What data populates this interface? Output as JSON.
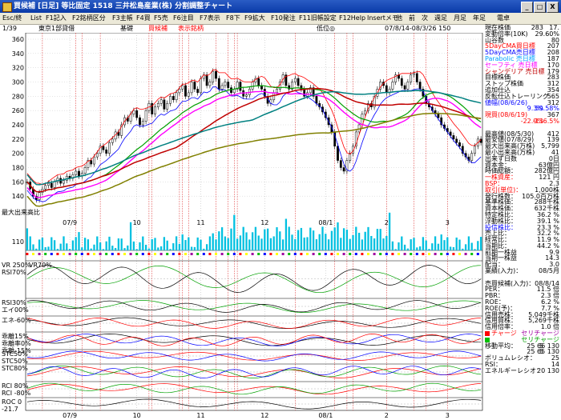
{
  "window": {
    "title": "買候補 [日足] 等比固定  1518  三井松島産業(株)  分割調整チャート",
    "btn_min": "_",
    "btn_max": "□",
    "btn_close": "X"
  },
  "menu": [
    "Esc/終",
    "List",
    "F1記入",
    "F2銘柄区分",
    "F3主帳",
    "F4買",
    "F5売",
    "F6注目",
    "F7表示",
    "F8下",
    "F9拡大",
    "F10発注",
    "F11旧帳設定",
    "F12Help",
    "Insertメモ",
    "他",
    "前",
    "次",
    "週足",
    "月足",
    "年足",
    "電卓"
  ],
  "info": {
    "page": "1/39",
    "market": "東京1部貸借",
    "tag1": "基礎",
    "tag2": "買候補",
    "tag3": "表示銘柄",
    "note": "低位◎",
    "range": "07/8/14-08/3/26 150"
  },
  "axes": {
    "price_ticks": [
      "360",
      "340",
      "320",
      "300",
      "280",
      "260",
      "240",
      "220",
      "200",
      "180",
      "160",
      "140"
    ],
    "volume_ticks": [
      "最大出来高比",
      "110"
    ],
    "indicator_labels": [
      "VR 250%",
      "RSI70%",
      "RSI30%",
      "エイ00%",
      "エネ-60%",
      "乖離15%",
      "乖離率0%",
      "乖離-15%",
      "STC50%",
      "STC50%",
      "STC80%",
      "RCI 80%",
      "RCI -80%",
      "ROC 0",
      "-21.7"
    ],
    "vr_labels": [
      "VR70%"
    ],
    "x_ticks": [
      "07/9",
      "10",
      "11",
      "12",
      "08/1",
      "2",
      "3"
    ]
  },
  "chart_data": {
    "type": "candlestick",
    "ylim": [
      120,
      360
    ],
    "x": [
      1,
      2,
      3,
      4,
      5,
      6,
      7,
      8,
      9,
      10,
      11,
      12,
      13,
      14,
      15,
      16,
      17,
      18,
      19,
      20,
      21,
      22,
      23,
      24,
      25,
      26,
      27,
      28,
      29,
      30,
      31,
      32,
      33,
      34,
      35,
      36,
      37,
      38,
      39,
      40,
      41,
      42,
      43,
      44,
      45,
      46,
      47,
      48,
      49,
      50,
      51,
      52,
      53,
      54,
      55,
      56,
      57,
      58,
      59,
      60,
      61,
      62,
      63,
      64,
      65,
      66,
      67,
      68,
      69,
      70,
      71,
      72,
      73,
      74,
      75,
      76,
      77,
      78,
      79,
      80,
      81,
      82,
      83,
      84,
      85,
      86,
      87,
      88,
      89,
      90,
      91,
      92,
      93,
      94,
      95,
      96,
      97,
      98,
      99,
      100,
      101,
      102,
      103,
      104,
      105,
      106,
      107,
      108,
      109,
      110,
      111,
      112,
      113,
      114,
      115,
      116,
      117,
      118,
      119,
      120,
      121,
      122,
      123,
      124,
      125,
      126,
      127,
      128,
      129,
      130,
      131,
      132,
      133,
      134,
      135,
      136,
      137,
      138,
      139,
      140,
      141,
      142,
      143,
      144,
      145,
      146,
      147,
      148,
      149,
      150
    ],
    "close": [
      160,
      150,
      140,
      135,
      145,
      150,
      155,
      158,
      152,
      160,
      165,
      158,
      162,
      168,
      165,
      170,
      175,
      168,
      172,
      180,
      190,
      185,
      195,
      200,
      210,
      205,
      200,
      215,
      220,
      230,
      225,
      240,
      250,
      245,
      255,
      260,
      250,
      240,
      245,
      260,
      270,
      255,
      265,
      270,
      275,
      262,
      270,
      280,
      275,
      285,
      290,
      295,
      280,
      285,
      300,
      290,
      285,
      305,
      310,
      295,
      300,
      315,
      305,
      290,
      295,
      300,
      292,
      285,
      290,
      300,
      288,
      280,
      282,
      290,
      300,
      305,
      295,
      290,
      280,
      270,
      275,
      285,
      290,
      300,
      310,
      295,
      290,
      300,
      305,
      295,
      290,
      280,
      285,
      292,
      280,
      270,
      265,
      258,
      250,
      240,
      230,
      210,
      190,
      180,
      175,
      190,
      200,
      210,
      230,
      240,
      255,
      260,
      270,
      265,
      280,
      290,
      300,
      295,
      285,
      290,
      300,
      310,
      305,
      295,
      290,
      300,
      310,
      312,
      300,
      290,
      280,
      270,
      265,
      260,
      255,
      250,
      240,
      235,
      230,
      225,
      220,
      215,
      210,
      200,
      195,
      190,
      200,
      210,
      220,
      215
    ],
    "series": [
      {
        "name": "5DayCMA買日標",
        "color": "#ff0000"
      },
      {
        "name": "5DayCMA売日標",
        "color": "#0000ff"
      },
      {
        "name": "Parabolic 売日標",
        "color": "#00a0ff"
      },
      {
        "name": "セーフティ 売日標",
        "color": "#ff00ff"
      },
      {
        "name": "シャンデリア 売日標",
        "color": "#c00000"
      }
    ]
  },
  "side": {
    "rows": [
      {
        "k": "現在株価",
        "v2": "283",
        "v": "17."
      },
      {
        "k": "変動倍率(10K)",
        "v": "29.60%"
      },
      {
        "k": "山谷数",
        "v": "80"
      },
      {
        "k": "5DayCMA買日標",
        "v": "207",
        "kc": "#ff0000"
      },
      {
        "k": "5DayCMA売日標",
        "v": "208",
        "kc": "#0000ff"
      },
      {
        "k": "Parabolic 売日標",
        "v": "187",
        "kc": "#00a0ff"
      },
      {
        "k": "セーフティ 売日標",
        "v": "170",
        "kc": "#ff00ff"
      },
      {
        "k": "シャンデリア 売日標",
        "v": "179",
        "kc": "#c00000"
      },
      {
        "k": "目標株価",
        "v": "283"
      },
      {
        "k": "ストップ株価",
        "v": "312"
      },
      {
        "k": "追加仕込",
        "v": "354"
      },
      {
        "k": "反転仕込トレーリング",
        "v": "565"
      },
      {
        "k": "値幅(08/6/26)",
        "v": "312",
        "kc": "#0000ff"
      },
      {
        "k": "",
        "v2": "9.3%",
        "v": "59.58%",
        "vc": "#0000ff"
      },
      {
        "k": "現買(08/6/19)",
        "v": "367",
        "kc": "#ff0000"
      },
      {
        "k": "",
        "v2": "-22.9%",
        "v": "-136.5%",
        "vc": "#ff0000"
      },
      {
        "k": "",
        "v": ""
      },
      {
        "k": "最高値(08/5/30)",
        "v": "412"
      },
      {
        "k": "最安値(07/8/29)",
        "v": "139"
      },
      {
        "k": "最大出来高(万株)",
        "v": "5,799"
      },
      {
        "k": "最小出来高(万株)",
        "v": "41"
      },
      {
        "k": "出来ず日数",
        "v": "0日"
      },
      {
        "k": "資本金：",
        "v": "63億円"
      },
      {
        "k": "時価総額：",
        "v": "282億円"
      },
      {
        "k": "一株資産：",
        "v": "121 円",
        "kc": "#ff0000"
      },
      {
        "k": "BSP：",
        "v": "2.3",
        "kc": "#ff0000"
      },
      {
        "k": "取引(単位)：",
        "v": "1,000株",
        "kc": "#ff0000"
      },
      {
        "k": "発行株数：",
        "v": "105.0百万株"
      },
      {
        "k": "基準株価：",
        "v": "288千株"
      },
      {
        "k": "資本株価：",
        "v": "632千株"
      },
      {
        "k": "特定株比：",
        "v": "36.2 %"
      },
      {
        "k": "浮動株比：",
        "v": "39.1 %"
      },
      {
        "k": "投信株比：",
        "v": "23.3 %",
        "kc": "#0000ff"
      },
      {
        "k": "売上比：",
        "v": "32.2 %"
      },
      {
        "k": "経常比：",
        "v": "11.9 %"
      },
      {
        "k": "当期比：",
        "v": "44.2 %"
      },
      {
        "k": "前期一株益",
        "v": "9.9"
      },
      {
        "k": "当期一株益",
        "v": "14.3"
      },
      {
        "k": "配当：",
        "v": "3.0"
      },
      {
        "k": "業績(入力)：",
        "v": "08/5月"
      },
      {
        "k": "",
        "v": ""
      },
      {
        "k": "売買候補(入力)：",
        "v": "08/8/14"
      },
      {
        "k": "PER：",
        "v": "11.5 倍"
      },
      {
        "k": "PBR：",
        "v": "2.3 倍"
      },
      {
        "k": "ROE：",
        "v": "6.2 %"
      },
      {
        "k": "ROE(予)：",
        "v": "7.7 %"
      },
      {
        "k": "信用売株：",
        "v": "5,049千株"
      },
      {
        "k": "信用買株：",
        "v": "5,269千株"
      },
      {
        "k": "信用倍率：",
        "v": "1.0 倍"
      },
      {
        "k": "チャージ",
        "v": "セリチャージ",
        "sw": "#ff0000",
        "kc": "#ff0000",
        "vc": "#a000a0"
      },
      {
        "k": "",
        "v": "セリチャージ",
        "sw": "#00c000",
        "vc": "#00a000"
      },
      {
        "k": "移動平均：",
        "v2": "5",
        "v": "25 66 130"
      },
      {
        "k": "",
        "v2": "5",
        "v": "25 65 130"
      },
      {
        "k": "ボリュムレシオ：",
        "v": "25"
      },
      {
        "k": "RSI：",
        "v": "14"
      },
      {
        "k": "エネルギーレシオ：",
        "v": "20 130"
      }
    ]
  }
}
